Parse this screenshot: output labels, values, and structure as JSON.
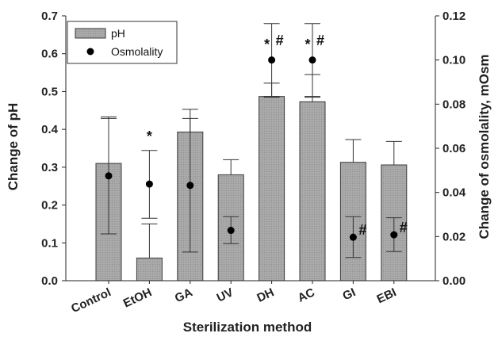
{
  "chart_data": {
    "type": "bar",
    "xlabel": "Sterilization method",
    "ylabel_left": "Change of pH",
    "ylabel_right": "Change of osmolality, mOsm",
    "categories": [
      "Control",
      "EtOH",
      "GA",
      "UV",
      "DH",
      "AC",
      "GI",
      "EBI"
    ],
    "ylim_left": [
      0,
      0.7
    ],
    "ylim_right": [
      0,
      0.12
    ],
    "yticks_left": [
      "0.0",
      "0.1",
      "0.2",
      "0.3",
      "0.4",
      "0.5",
      "0.6",
      "0.7"
    ],
    "yticks_right": [
      "0.00",
      "0.02",
      "0.04",
      "0.06",
      "0.08",
      "0.10",
      "0.12"
    ],
    "series": [
      {
        "name": "pH",
        "axis": "left",
        "kind": "bar",
        "values": [
          0.31,
          0.06,
          0.393,
          0.28,
          0.487,
          0.473,
          0.313,
          0.306
        ],
        "error_upper": [
          0.433,
          0.15,
          0.453,
          0.32,
          0.522,
          0.545,
          0.373,
          0.368
        ],
        "error_lower": [
          null,
          null,
          null,
          null,
          0.485,
          0.485,
          null,
          null
        ]
      },
      {
        "name": "Osmolality",
        "axis": "right",
        "kind": "point",
        "values": [
          0.0475,
          0.0438,
          0.0432,
          0.0228,
          0.1,
          0.1,
          0.0197,
          0.0208
        ],
        "error_upper": [
          0.0735,
          0.059,
          0.0735,
          0.029,
          0.1165,
          0.1165,
          0.029,
          0.0285
        ],
        "error_lower": [
          0.0212,
          0.0283,
          0.013,
          0.0168,
          0.0835,
          0.0835,
          0.0105,
          0.0132
        ]
      }
    ],
    "annotations": [
      {
        "category": "EtOH",
        "text": "*"
      },
      {
        "category": "DH",
        "text": "* #"
      },
      {
        "category": "AC",
        "text": "* #"
      },
      {
        "category": "GI",
        "text": "#"
      },
      {
        "category": "EBI",
        "text": "#"
      }
    ],
    "legend": {
      "position": "top-left",
      "entries": [
        "pH",
        "Osmolality"
      ]
    },
    "colors": {
      "bar_fill": "#a9a9a9",
      "bar_stroke": "#3a3a3a",
      "point": "#000000",
      "axis": "#222222"
    }
  }
}
